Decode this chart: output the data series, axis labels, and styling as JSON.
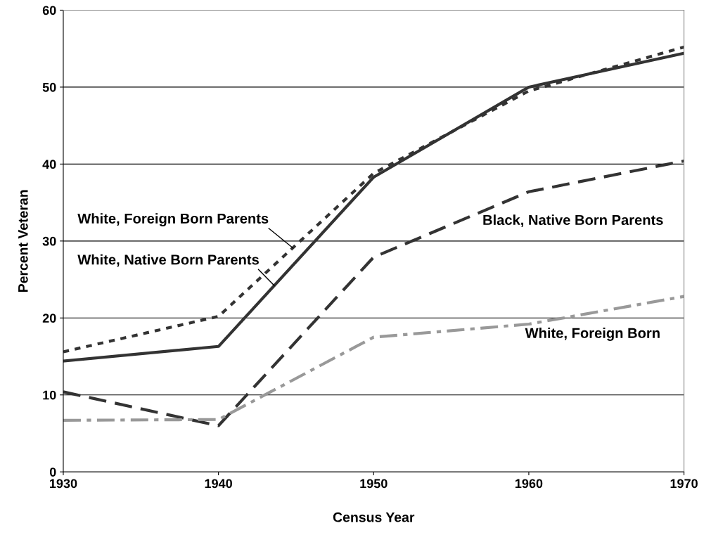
{
  "chart_data": {
    "type": "line",
    "xlabel": "Census Year",
    "ylabel": "Percent Veteran",
    "x": [
      1930,
      1940,
      1950,
      1960,
      1970
    ],
    "series": [
      {
        "color": "#333333",
        "line_style": "solid",
        "values": [
          14.4,
          16.3,
          38.3,
          50.0,
          54.4
        ]
      },
      {
        "color": "#333333",
        "line_style": "dotted",
        "values": [
          15.6,
          20.2,
          38.8,
          49.5,
          55.2
        ]
      },
      {
        "color": "#333333",
        "line_style": "dashed",
        "values": [
          10.4,
          6.0,
          27.9,
          36.4,
          40.4
        ]
      },
      {
        "color": "#999999",
        "line_style": "dashdot",
        "values": [
          6.7,
          6.8,
          17.5,
          19.2,
          22.8
        ]
      }
    ],
    "annotations": [
      {
        "text": "White, Foreign Born Parents",
        "x": 1944.8,
        "y": 29.1
      },
      {
        "text": "White, Native Born Parents",
        "x": 1943.6,
        "y": 24.2
      },
      "Black, Native Born Parents",
      "White, Foreign Born"
    ],
    "xlim": [
      1930,
      1970
    ],
    "xticks": [
      1930,
      1940,
      1950,
      1960,
      1970
    ],
    "ylim": [
      0,
      60
    ],
    "yticks": [
      0,
      10,
      20,
      30,
      40,
      50,
      60
    ],
    "grid": "y",
    "marker": "none"
  }
}
